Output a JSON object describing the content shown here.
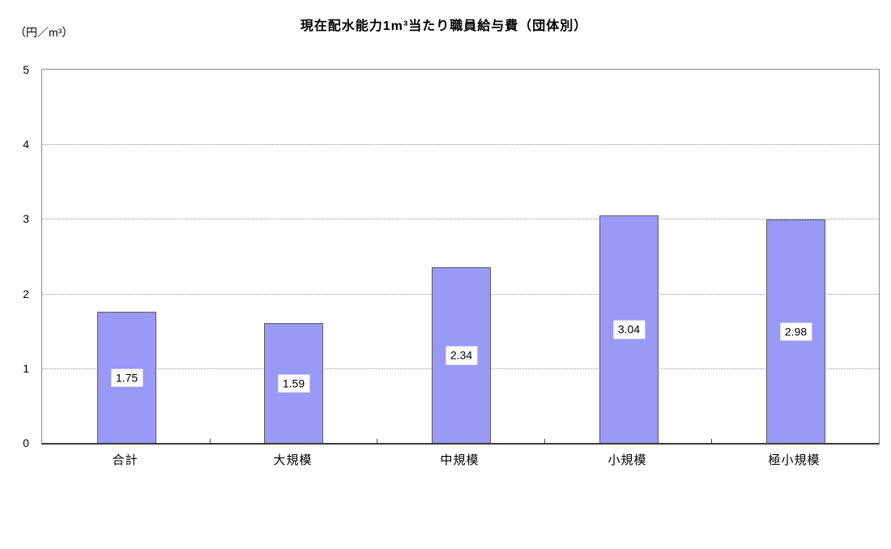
{
  "chart_data": {
    "type": "bar",
    "title": "現在配水能力1m³当たり職員給与費（団体別）",
    "unit_label": "（円／m³）",
    "categories": [
      "合計",
      "大規模",
      "中規模",
      "小規模",
      "極小規模"
    ],
    "values": [
      1.75,
      1.59,
      2.34,
      3.04,
      2.98
    ],
    "data_labels": [
      "1.75",
      "1.59",
      "2.34",
      "3.04",
      "2.98"
    ],
    "xlabel": "",
    "ylabel": "",
    "ylim": [
      0,
      5
    ],
    "yticks": [
      0,
      1,
      2,
      3,
      4,
      5
    ],
    "grid": true,
    "legend_position": "none",
    "bar_color": "#9a99f6",
    "bar_border_color": "#5c5c5c",
    "label_box_color": "#ffffff",
    "text_color": "#000000"
  }
}
